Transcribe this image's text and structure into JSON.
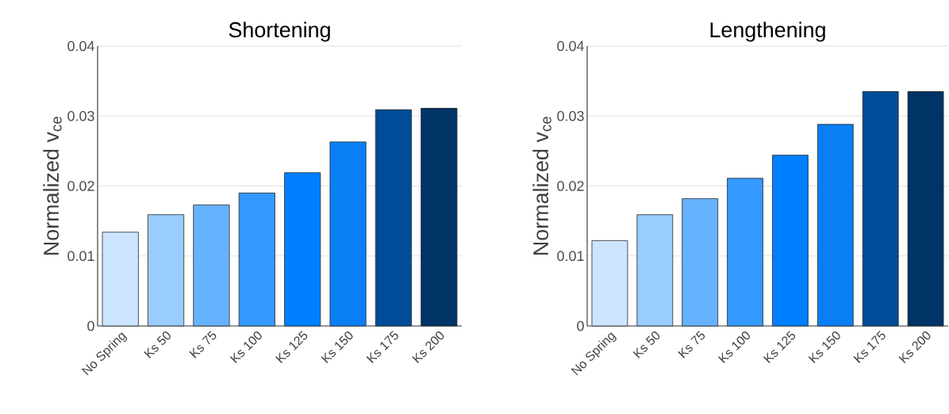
{
  "chart_data": [
    {
      "type": "bar",
      "title": "Shortening",
      "ylabel": "Normalized v$_{ce}$",
      "categories": [
        "No Spring",
        "Ks 50",
        "Ks 75",
        "Ks 100",
        "Ks 125",
        "Ks 150",
        "Ks 175",
        "Ks 200"
      ],
      "values": [
        0.0134,
        0.0159,
        0.0173,
        0.019,
        0.0219,
        0.0263,
        0.0309,
        0.0311
      ],
      "colors": [
        "#cce5ff",
        "#99ccff",
        "#66b2ff",
        "#3399ff",
        "#007fff",
        "#0a7ff5",
        "#004c99",
        "#003366"
      ],
      "ylim": [
        0,
        0.04
      ],
      "yticks": [
        0,
        0.01,
        0.02,
        0.03,
        0.04
      ],
      "grid": "y"
    },
    {
      "type": "bar",
      "title": "Lengthening",
      "ylabel": "Normalized v$_{ce}$",
      "categories": [
        "No Spring",
        "Ks 50",
        "Ks 75",
        "Ks 100",
        "Ks 125",
        "Ks 150",
        "Ks 175",
        "Ks 200"
      ],
      "values": [
        0.0122,
        0.0159,
        0.0182,
        0.0211,
        0.0244,
        0.0288,
        0.0335,
        0.0335
      ],
      "colors": [
        "#cce5ff",
        "#99ccff",
        "#66b2ff",
        "#3399ff",
        "#007fff",
        "#0a7ff5",
        "#004c99",
        "#003366"
      ],
      "ylim": [
        0,
        0.04
      ],
      "yticks": [
        0,
        0.01,
        0.02,
        0.03,
        0.04
      ],
      "grid": "y"
    }
  ]
}
